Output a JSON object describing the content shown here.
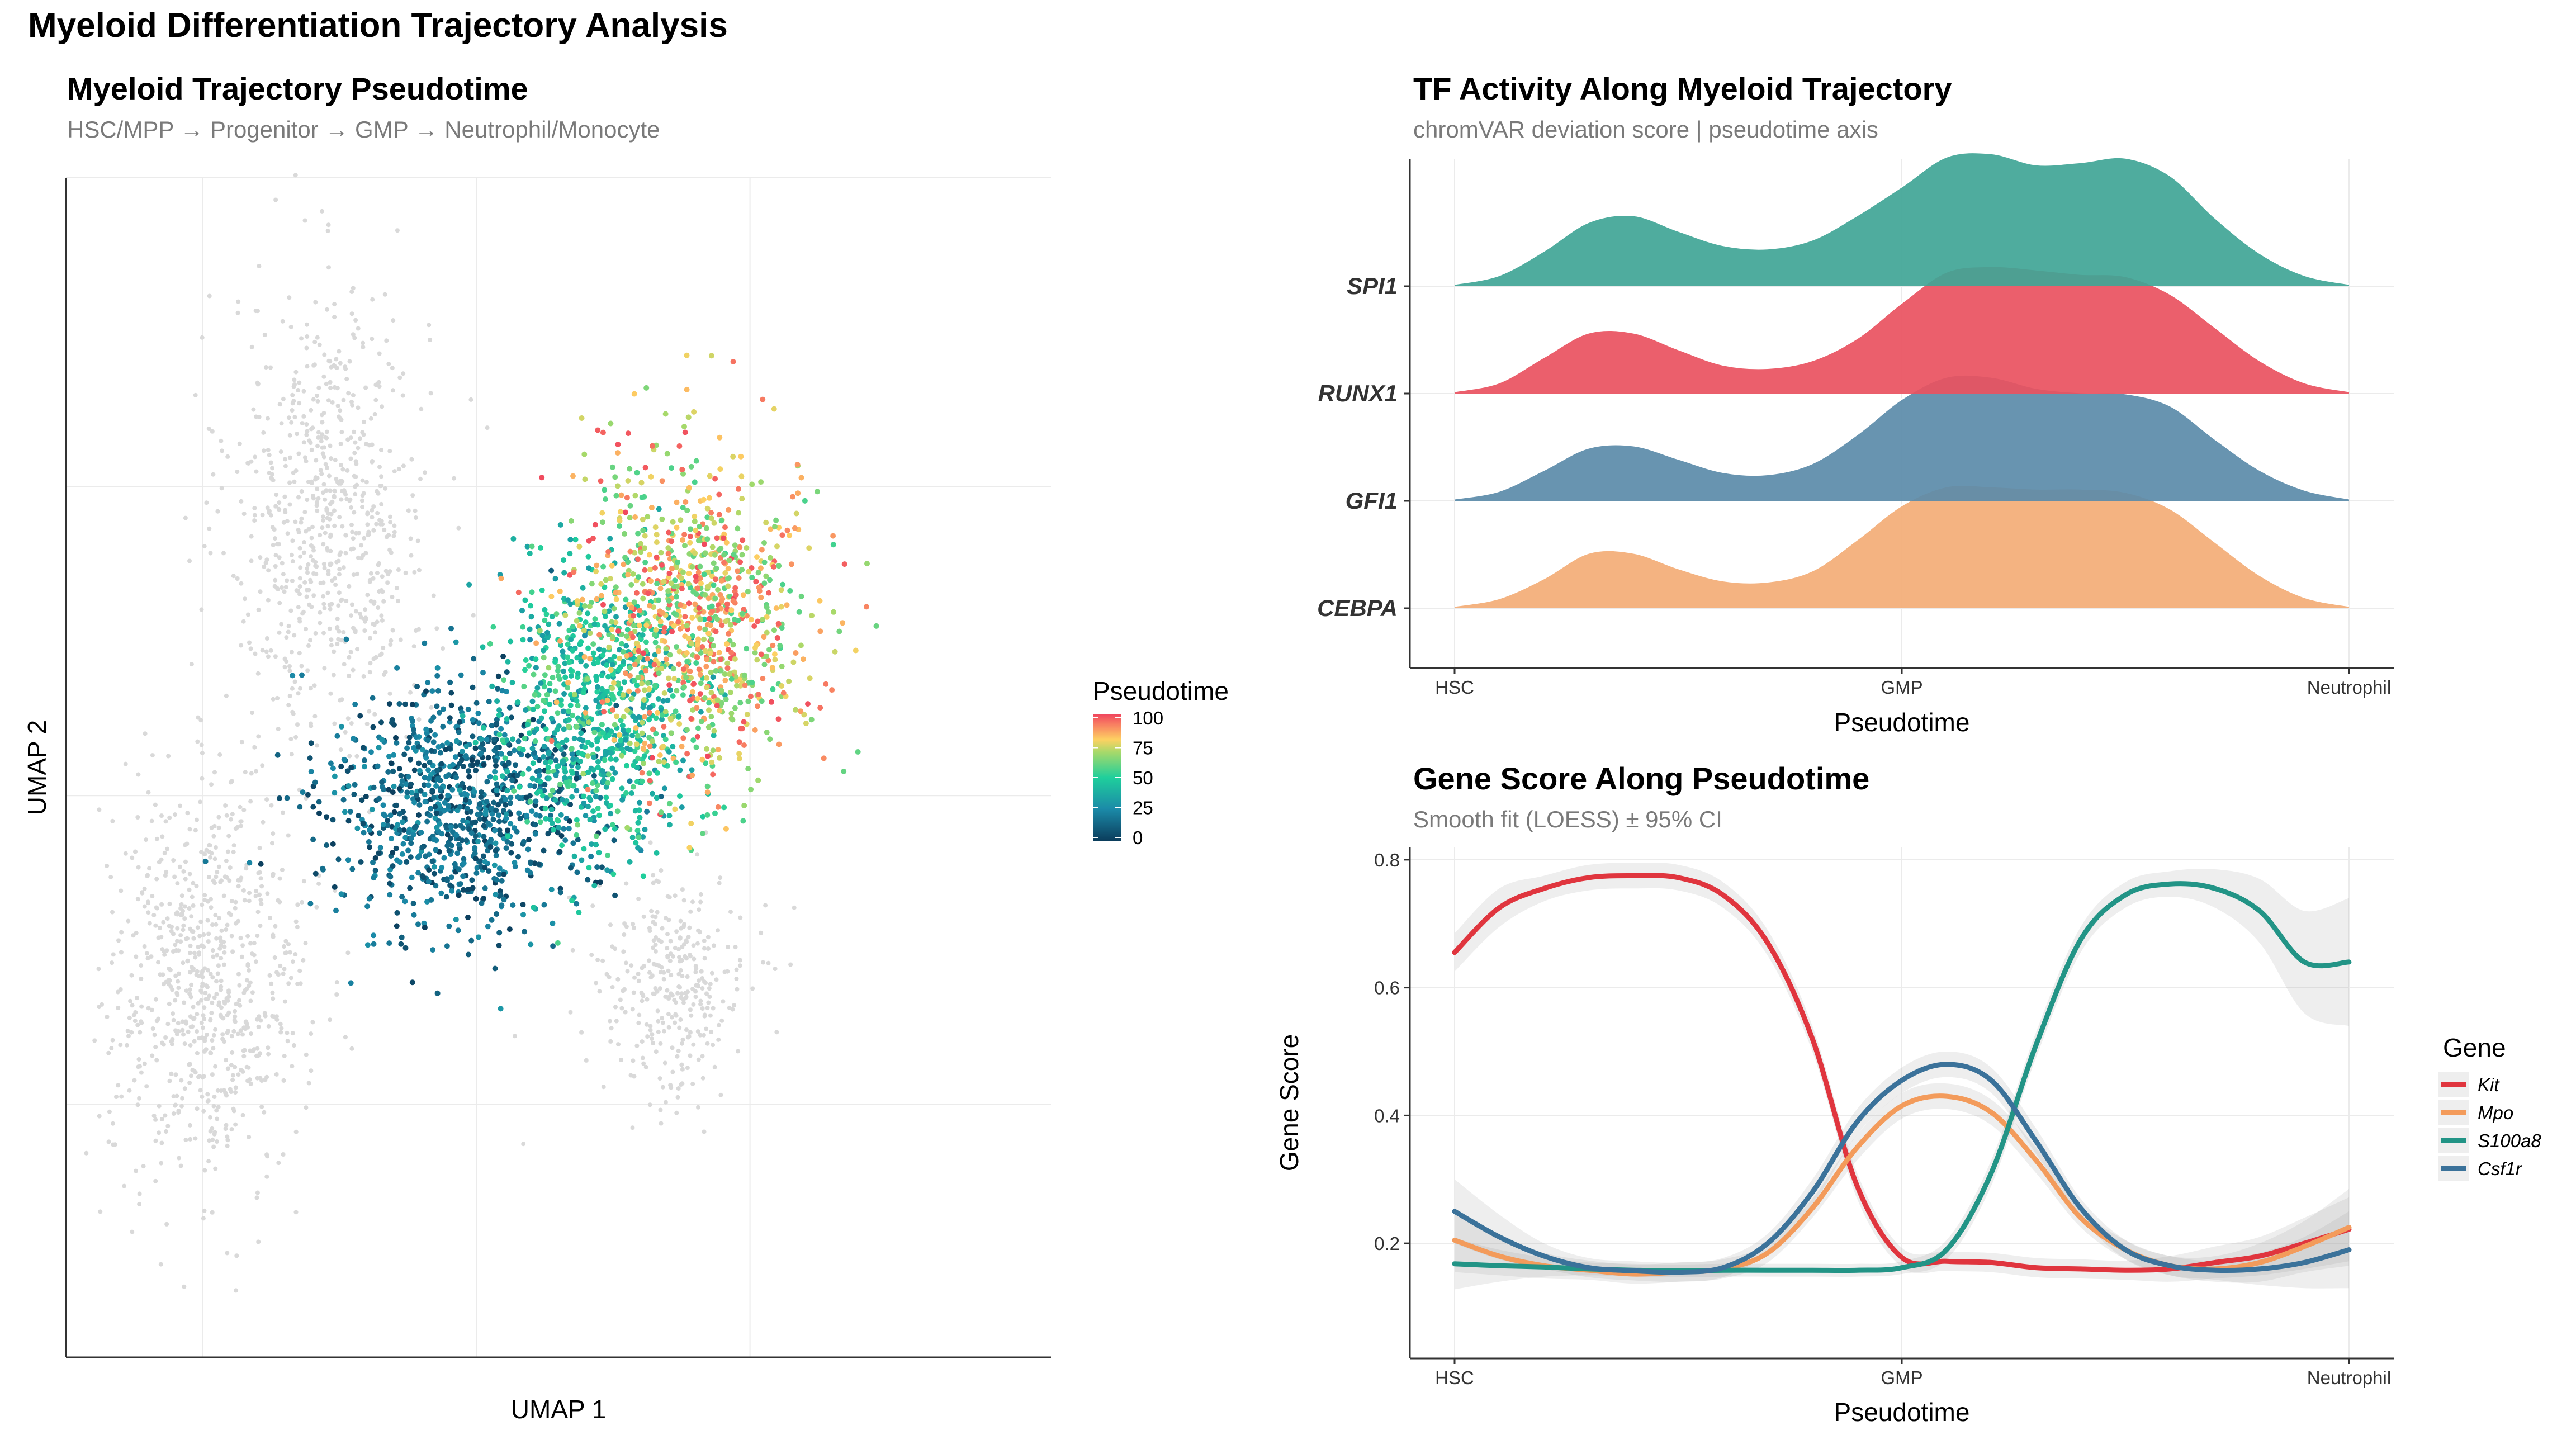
{
  "figure": {
    "title": "Myeloid Differentiation Trajectory Analysis"
  },
  "umap_panel": {
    "title": "Myeloid Trajectory Pseudotime",
    "subtitle": "HSC/MPP → Progenitor → GMP → Neutrophil/Monocyte",
    "legend_title": "Pseudotime",
    "legend_ticks": [
      "100",
      "75",
      "50",
      "25",
      "0"
    ],
    "colors": {
      "na_cells": "#d9d9d9",
      "low": "#0b3d5c",
      "mid_low": "#1b8aa8",
      "mid": "#1fcf9c",
      "mid_high": "#a6d96a",
      "high_a": "#fdd162",
      "high_b": "#f87f62",
      "max": "#f0485e"
    }
  },
  "ridge_panel": {
    "title": "TF Activity Along Myeloid Trajectory",
    "subtitle": "chromVAR deviation score | pseudotime axis"
  },
  "gene_panel": {
    "title": "Gene Score Along Pseudotime",
    "subtitle": "Smooth fit (LOESS) ± 95% CI",
    "legend_title": "Gene"
  },
  "chart_data": [
    {
      "type": "scatter",
      "title": "Myeloid Trajectory Pseudotime",
      "subtitle": "HSC/MPP → Progenitor → GMP → Neutrophil/Monocyte",
      "xlabel": "UMAP 1",
      "ylabel": "UMAP 2",
      "color_variable": "Pseudotime",
      "color_range": [
        0,
        100
      ],
      "grid": true,
      "legend": "right",
      "cell_groups": [
        {
          "center": [
            -2.7,
            5.0
          ],
          "spread": [
            0.9,
            2.0
          ],
          "n": 700,
          "pseudotime": null
        },
        {
          "center": [
            -4.9,
            -3.3
          ],
          "spread": [
            0.9,
            1.8
          ],
          "n": 750,
          "pseudotime": null
        },
        {
          "center": [
            3.6,
            -3.4
          ],
          "spread": [
            0.7,
            1.0
          ],
          "n": 320,
          "pseudotime": null
        },
        {
          "center": [
            -0.3,
            -0.1
          ],
          "spread": [
            1.2,
            1.1
          ],
          "n": 950,
          "pseudotime": [
            0,
            30
          ]
        },
        {
          "center": [
            2.2,
            1.5
          ],
          "spread": [
            0.9,
            1.2
          ],
          "n": 750,
          "pseudotime": [
            30,
            60
          ]
        },
        {
          "center": [
            4.0,
            3.2
          ],
          "spread": [
            1.1,
            1.4
          ],
          "n": 950,
          "pseudotime": [
            55,
            100
          ]
        }
      ]
    },
    {
      "type": "area",
      "subtype": "ridgeline",
      "title": "TF Activity Along Myeloid Trajectory",
      "subtitle": "chromVAR deviation score | pseudotime axis",
      "xlabel": "Pseudotime",
      "x_ticks": [
        "HSC",
        "GMP",
        "Neutrophil"
      ],
      "x_tick_values": [
        0,
        50,
        100
      ],
      "xlim": [
        -5,
        105
      ],
      "y_categories": [
        "SPI1",
        "RUNX1",
        "GFI1",
        "CEBPA"
      ],
      "x": [
        0,
        5,
        10,
        15,
        20,
        25,
        30,
        35,
        40,
        45,
        50,
        55,
        60,
        65,
        70,
        75,
        80,
        85,
        90,
        95,
        100
      ],
      "series": [
        {
          "name": "SPI1",
          "color": "#40a596",
          "values": [
            0.02,
            0.1,
            0.32,
            0.58,
            0.64,
            0.5,
            0.37,
            0.34,
            0.42,
            0.64,
            0.9,
            1.17,
            1.2,
            1.1,
            1.12,
            1.16,
            1.0,
            0.62,
            0.3,
            0.1,
            0.02
          ]
        },
        {
          "name": "RUNX1",
          "color": "#e9515f",
          "values": [
            0.02,
            0.1,
            0.33,
            0.55,
            0.55,
            0.4,
            0.26,
            0.23,
            0.3,
            0.5,
            0.82,
            1.1,
            1.15,
            1.12,
            1.08,
            1.06,
            0.9,
            0.6,
            0.3,
            0.1,
            0.02
          ]
        },
        {
          "name": "GFI1",
          "color": "#5b8ba9",
          "values": [
            0.02,
            0.09,
            0.28,
            0.48,
            0.5,
            0.38,
            0.26,
            0.24,
            0.34,
            0.6,
            0.92,
            1.12,
            1.12,
            1.02,
            0.98,
            0.97,
            0.86,
            0.56,
            0.28,
            0.1,
            0.02
          ]
        },
        {
          "name": "CEBPA",
          "color": "#f3ad76",
          "values": [
            0.02,
            0.09,
            0.27,
            0.5,
            0.5,
            0.36,
            0.25,
            0.24,
            0.34,
            0.62,
            0.93,
            1.1,
            1.1,
            1.08,
            1.08,
            1.05,
            0.9,
            0.6,
            0.3,
            0.1,
            0.02
          ]
        }
      ]
    },
    {
      "type": "line",
      "title": "Gene Score Along Pseudotime",
      "subtitle": "Smooth fit (LOESS) ± 95% CI",
      "xlabel": "Pseudotime",
      "ylabel": "Gene Score",
      "x_ticks": [
        "HSC",
        "GMP",
        "Neutrophil"
      ],
      "x_tick_values": [
        0,
        50,
        100
      ],
      "xlim": [
        -5,
        105
      ],
      "ylim": [
        0.02,
        0.82
      ],
      "y_ticks": [
        0.2,
        0.4,
        0.6,
        0.8
      ],
      "grid": true,
      "legend": "right",
      "legend_title": "Gene",
      "x": [
        0,
        5,
        10,
        15,
        20,
        25,
        30,
        35,
        40,
        45,
        50,
        55,
        60,
        65,
        70,
        75,
        80,
        85,
        90,
        95,
        100
      ],
      "series": [
        {
          "name": "Kit",
          "color": "#e0353e",
          "values": [
            0.655,
            0.725,
            0.755,
            0.772,
            0.775,
            0.772,
            0.745,
            0.67,
            0.52,
            0.29,
            0.178,
            0.172,
            0.17,
            0.162,
            0.16,
            0.158,
            0.16,
            0.17,
            0.18,
            0.2,
            0.222
          ],
          "ci": [
            0.03,
            0.03,
            0.02,
            0.02,
            0.02,
            0.02,
            0.02,
            0.02,
            0.02,
            0.02,
            0.015,
            0.015,
            0.015,
            0.015,
            0.015,
            0.015,
            0.02,
            0.025,
            0.03,
            0.04,
            0.05
          ]
        },
        {
          "name": "Mpo",
          "color": "#f39b5b",
          "values": [
            0.205,
            0.18,
            0.165,
            0.158,
            0.152,
            0.155,
            0.16,
            0.185,
            0.255,
            0.35,
            0.415,
            0.43,
            0.405,
            0.33,
            0.24,
            0.19,
            0.165,
            0.16,
            0.17,
            0.195,
            0.225
          ],
          "ci": [
            0.05,
            0.03,
            0.02,
            0.015,
            0.015,
            0.015,
            0.015,
            0.015,
            0.015,
            0.02,
            0.02,
            0.02,
            0.02,
            0.02,
            0.015,
            0.015,
            0.015,
            0.02,
            0.03,
            0.04,
            0.06
          ]
        },
        {
          "name": "S100a8",
          "color": "#229486",
          "values": [
            0.168,
            0.165,
            0.163,
            0.16,
            0.158,
            0.157,
            0.158,
            0.158,
            0.158,
            0.158,
            0.162,
            0.19,
            0.31,
            0.51,
            0.675,
            0.745,
            0.762,
            0.755,
            0.72,
            0.64,
            0.64
          ],
          "ci": [
            0.04,
            0.025,
            0.015,
            0.01,
            0.01,
            0.01,
            0.01,
            0.01,
            0.01,
            0.01,
            0.01,
            0.015,
            0.02,
            0.02,
            0.02,
            0.02,
            0.02,
            0.03,
            0.05,
            0.08,
            0.1
          ]
        },
        {
          "name": "Csf1r",
          "color": "#3b729a",
          "values": [
            0.25,
            0.21,
            0.18,
            0.162,
            0.157,
            0.155,
            0.162,
            0.2,
            0.28,
            0.39,
            0.455,
            0.48,
            0.455,
            0.36,
            0.255,
            0.19,
            0.165,
            0.158,
            0.16,
            0.17,
            0.19
          ],
          "ci": [
            0.05,
            0.035,
            0.02,
            0.015,
            0.015,
            0.015,
            0.015,
            0.015,
            0.02,
            0.02,
            0.02,
            0.02,
            0.02,
            0.02,
            0.015,
            0.015,
            0.015,
            0.015,
            0.025,
            0.04,
            0.06
          ]
        }
      ]
    }
  ]
}
